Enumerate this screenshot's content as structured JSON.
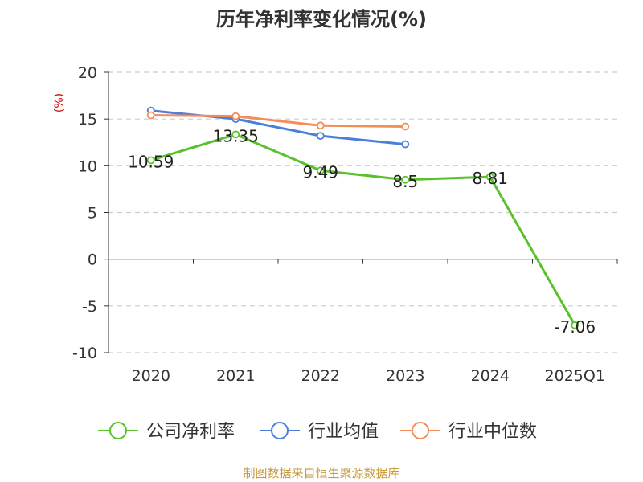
{
  "chart_data": {
    "type": "line",
    "title": "历年净利率变化情况(%)",
    "ylabel": "(%)",
    "xlabel": "",
    "categories": [
      "2020",
      "2021",
      "2022",
      "2023",
      "2024",
      "2025Q1"
    ],
    "yticks": [
      20,
      15,
      10,
      5,
      0,
      -5,
      -10
    ],
    "ylim": [
      -10,
      20
    ],
    "grid": true,
    "legend_position": "bottom",
    "series": [
      {
        "name": "公司净利率",
        "color": "#5ac12d",
        "values": [
          10.59,
          13.35,
          9.49,
          8.5,
          8.81,
          -7.06
        ],
        "labels": [
          "10.59",
          "13.35",
          "9.49",
          "8.5",
          "8.81",
          "-7.06"
        ]
      },
      {
        "name": "行业均值",
        "color": "#4a7fdc",
        "values": [
          15.9,
          15.0,
          13.2,
          12.3,
          null,
          null
        ]
      },
      {
        "name": "行业中位数",
        "color": "#f58d5b",
        "values": [
          15.4,
          15.3,
          14.3,
          14.2,
          null,
          null
        ]
      }
    ]
  },
  "footer": {
    "source": "制图数据来自恒生聚源数据库"
  }
}
